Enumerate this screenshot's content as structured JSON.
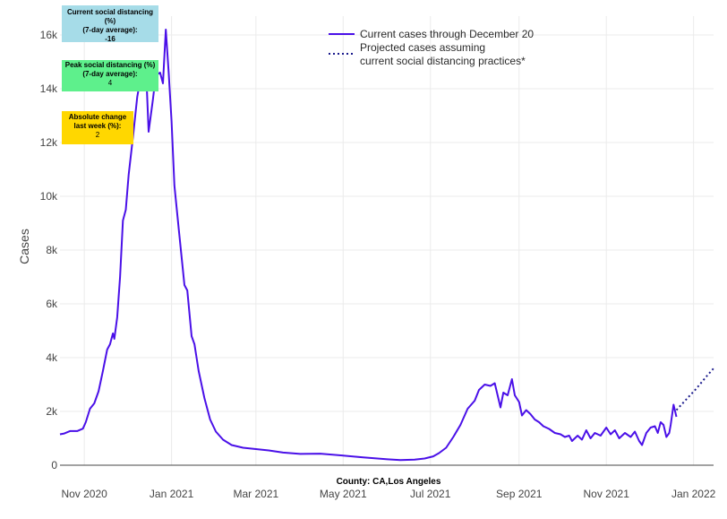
{
  "info_boxes": {
    "current": {
      "label": "Current social distancing (%)\n(7-day average):",
      "value": "-16",
      "color": "#a6dce8"
    },
    "peak": {
      "label": "Peak social distancing (%)\n(7-day average):",
      "value": "4",
      "color": "#5ef08c"
    },
    "change": {
      "label": "Absolute change\nlast week (%):",
      "value": "2",
      "color": "#ffd700"
    }
  },
  "chart_data": {
    "type": "line",
    "xlabel": "County: CA,Los Angeles",
    "ylabel": "Cases",
    "ylim": [
      0,
      16700
    ],
    "xlim": [
      "2020-10-15",
      "2022-01-15"
    ],
    "y_ticks": [
      {
        "value": 0,
        "label": "0"
      },
      {
        "value": 2000,
        "label": "2k"
      },
      {
        "value": 4000,
        "label": "4k"
      },
      {
        "value": 6000,
        "label": "6k"
      },
      {
        "value": 8000,
        "label": "8k"
      },
      {
        "value": 10000,
        "label": "10k"
      },
      {
        "value": 12000,
        "label": "12k"
      },
      {
        "value": 14000,
        "label": "14k"
      },
      {
        "value": 16000,
        "label": "16k"
      }
    ],
    "x_ticks": [
      {
        "value": "2020-11-01",
        "label": "Nov 2020"
      },
      {
        "value": "2021-01-01",
        "label": "Jan 2021"
      },
      {
        "value": "2021-03-01",
        "label": "Mar 2021"
      },
      {
        "value": "2021-05-01",
        "label": "May 2021"
      },
      {
        "value": "2021-07-01",
        "label": "Jul 2021"
      },
      {
        "value": "2021-09-01",
        "label": "Sep 2021"
      },
      {
        "value": "2021-11-01",
        "label": "Nov 2021"
      },
      {
        "value": "2022-01-01",
        "label": "Jan 2022"
      }
    ],
    "grid": true,
    "legend_position": "top-right",
    "series": [
      {
        "name": "Current cases through December 20",
        "color": "#4a10e8",
        "dash": "solid",
        "points": [
          [
            "2020-10-15",
            1150
          ],
          [
            "2020-10-18",
            1180
          ],
          [
            "2020-10-22",
            1270
          ],
          [
            "2020-10-27",
            1270
          ],
          [
            "2020-10-31",
            1360
          ],
          [
            "2020-11-02",
            1600
          ],
          [
            "2020-11-05",
            2100
          ],
          [
            "2020-11-08",
            2300
          ],
          [
            "2020-11-11",
            2750
          ],
          [
            "2020-11-14",
            3500
          ],
          [
            "2020-11-17",
            4300
          ],
          [
            "2020-11-19",
            4500
          ],
          [
            "2020-11-21",
            4900
          ],
          [
            "2020-11-22",
            4700
          ],
          [
            "2020-11-24",
            5500
          ],
          [
            "2020-11-26",
            7000
          ],
          [
            "2020-11-28",
            9100
          ],
          [
            "2020-11-30",
            9500
          ],
          [
            "2020-12-02",
            10800
          ],
          [
            "2020-12-05",
            12200
          ],
          [
            "2020-12-08",
            13700
          ],
          [
            "2020-12-10",
            14300
          ],
          [
            "2020-12-12",
            14600
          ],
          [
            "2020-12-14",
            15000
          ],
          [
            "2020-12-16",
            12400
          ],
          [
            "2020-12-19",
            13600
          ],
          [
            "2020-12-21",
            14500
          ],
          [
            "2020-12-24",
            14600
          ],
          [
            "2020-12-26",
            14200
          ],
          [
            "2020-12-28",
            16200
          ],
          [
            "2020-12-30",
            14600
          ],
          [
            "2021-01-01",
            12800
          ],
          [
            "2021-01-03",
            10400
          ],
          [
            "2021-01-06",
            8800
          ],
          [
            "2021-01-10",
            6700
          ],
          [
            "2021-01-12",
            6500
          ],
          [
            "2021-01-15",
            4800
          ],
          [
            "2021-01-17",
            4500
          ],
          [
            "2021-01-20",
            3500
          ],
          [
            "2021-01-24",
            2500
          ],
          [
            "2021-01-28",
            1700
          ],
          [
            "2021-02-01",
            1250
          ],
          [
            "2021-02-06",
            950
          ],
          [
            "2021-02-12",
            750
          ],
          [
            "2021-02-20",
            650
          ],
          [
            "2021-03-01",
            600
          ],
          [
            "2021-03-10",
            550
          ],
          [
            "2021-03-20",
            470
          ],
          [
            "2021-04-01",
            420
          ],
          [
            "2021-04-15",
            430
          ],
          [
            "2021-05-01",
            360
          ],
          [
            "2021-05-15",
            290
          ],
          [
            "2021-06-01",
            220
          ],
          [
            "2021-06-10",
            190
          ],
          [
            "2021-06-20",
            210
          ],
          [
            "2021-06-27",
            250
          ],
          [
            "2021-07-03",
            330
          ],
          [
            "2021-07-07",
            450
          ],
          [
            "2021-07-12",
            650
          ],
          [
            "2021-07-17",
            1050
          ],
          [
            "2021-07-22",
            1500
          ],
          [
            "2021-07-27",
            2100
          ],
          [
            "2021-08-01",
            2400
          ],
          [
            "2021-08-04",
            2800
          ],
          [
            "2021-08-08",
            3000
          ],
          [
            "2021-08-12",
            2950
          ],
          [
            "2021-08-15",
            3050
          ],
          [
            "2021-08-17",
            2600
          ],
          [
            "2021-08-19",
            2150
          ],
          [
            "2021-08-21",
            2700
          ],
          [
            "2021-08-24",
            2600
          ],
          [
            "2021-08-27",
            3200
          ],
          [
            "2021-08-29",
            2600
          ],
          [
            "2021-09-01",
            2350
          ],
          [
            "2021-09-03",
            1850
          ],
          [
            "2021-09-06",
            2050
          ],
          [
            "2021-09-09",
            1900
          ],
          [
            "2021-09-12",
            1700
          ],
          [
            "2021-09-15",
            1600
          ],
          [
            "2021-09-18",
            1450
          ],
          [
            "2021-09-22",
            1350
          ],
          [
            "2021-09-26",
            1200
          ],
          [
            "2021-09-30",
            1150
          ],
          [
            "2021-10-03",
            1050
          ],
          [
            "2021-10-06",
            1100
          ],
          [
            "2021-10-08",
            900
          ],
          [
            "2021-10-12",
            1100
          ],
          [
            "2021-10-15",
            950
          ],
          [
            "2021-10-18",
            1300
          ],
          [
            "2021-10-21",
            1000
          ],
          [
            "2021-10-24",
            1200
          ],
          [
            "2021-10-28",
            1100
          ],
          [
            "2021-11-01",
            1400
          ],
          [
            "2021-11-04",
            1150
          ],
          [
            "2021-11-07",
            1300
          ],
          [
            "2021-11-10",
            1000
          ],
          [
            "2021-11-14",
            1200
          ],
          [
            "2021-11-18",
            1050
          ],
          [
            "2021-11-21",
            1250
          ],
          [
            "2021-11-24",
            900
          ],
          [
            "2021-11-26",
            750
          ],
          [
            "2021-11-29",
            1200
          ],
          [
            "2021-12-02",
            1400
          ],
          [
            "2021-12-05",
            1450
          ],
          [
            "2021-12-07",
            1200
          ],
          [
            "2021-12-09",
            1600
          ],
          [
            "2021-12-11",
            1500
          ],
          [
            "2021-12-13",
            1050
          ],
          [
            "2021-12-15",
            1200
          ],
          [
            "2021-12-16",
            1500
          ],
          [
            "2021-12-18",
            2250
          ],
          [
            "2021-12-20",
            1800
          ]
        ]
      },
      {
        "name": "Projected cases assuming\ncurrent social distancing practices*",
        "color": "#1a1a8c",
        "dash": "dotted",
        "points": [
          [
            "2021-12-20",
            2050
          ],
          [
            "2021-12-27",
            2450
          ],
          [
            "2022-01-03",
            2850
          ],
          [
            "2022-01-10",
            3300
          ],
          [
            "2022-01-15",
            3600
          ]
        ]
      }
    ]
  }
}
